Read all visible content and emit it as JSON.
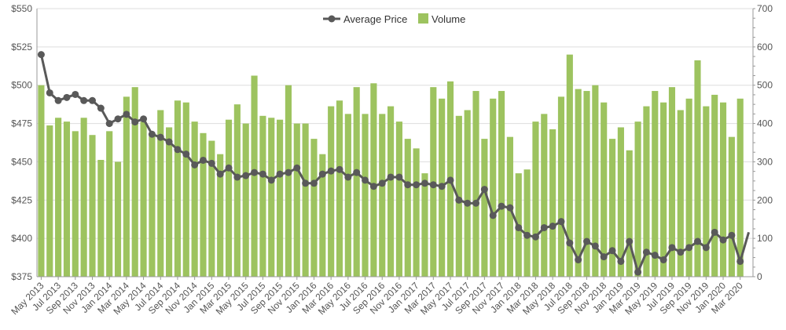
{
  "chart_data": {
    "type": "bar+line",
    "legend_position": "top-center",
    "grid": true,
    "colors": {
      "volume": "#9dc35f",
      "price": "#595959",
      "grid": "#dddddd",
      "axis": "#999999"
    },
    "y_left": {
      "label": "",
      "ylim": [
        375,
        550
      ],
      "ticks": [
        375,
        400,
        425,
        450,
        475,
        500,
        525,
        550
      ],
      "prefix": "$"
    },
    "y_right": {
      "label": "",
      "ylim": [
        0,
        700
      ],
      "ticks": [
        0,
        100,
        200,
        300,
        400,
        500,
        600,
        700
      ]
    },
    "x_tick_labels": [
      "May 2013",
      "Jul 2013",
      "Sep 2013",
      "Nov 2013",
      "Jan 2014",
      "Mar 2014",
      "May 2014",
      "Jul 2014",
      "Sep 2014",
      "Nov 2014",
      "Jan 2015",
      "Mar 2015",
      "May 2015",
      "Jul 2015",
      "Sep 2015",
      "Nov 2015",
      "Jan 2016",
      "Mar 2016",
      "May 2016",
      "Jul 2016",
      "Sep 2016",
      "Nov 2016",
      "Jan 2017",
      "Mar 2017",
      "May 2017",
      "Jul 2017",
      "Sep 2017",
      "Nov 2017",
      "Jan 2018",
      "Mar 2018",
      "May 2018",
      "Jul 2018",
      "Sep 2018",
      "Nov 2018",
      "Jan 2019",
      "Mar 2019",
      "May 2019",
      "Jul 2019",
      "Sep 2019",
      "Nov 2019",
      "Jan 2020",
      "Mar 2020"
    ],
    "x": [
      "May 2013",
      "Jun 2013",
      "Jul 2013",
      "Aug 2013",
      "Sep 2013",
      "Oct 2013",
      "Nov 2013",
      "Dec 2013",
      "Jan 2014",
      "Feb 2014",
      "Mar 2014",
      "Apr 2014",
      "May 2014",
      "Jun 2014",
      "Jul 2014",
      "Aug 2014",
      "Sep 2014",
      "Oct 2014",
      "Nov 2014",
      "Dec 2014",
      "Jan 2015",
      "Feb 2015",
      "Mar 2015",
      "Apr 2015",
      "May 2015",
      "Jun 2015",
      "Jul 2015",
      "Aug 2015",
      "Sep 2015",
      "Oct 2015",
      "Nov 2015",
      "Dec 2015",
      "Jan 2016",
      "Feb 2016",
      "Mar 2016",
      "Apr 2016",
      "May 2016",
      "Jun 2016",
      "Jul 2016",
      "Aug 2016",
      "Sep 2016",
      "Oct 2016",
      "Nov 2016",
      "Dec 2016",
      "Jan 2017",
      "Feb 2017",
      "Mar 2017",
      "Apr 2017",
      "May 2017",
      "Jun 2017",
      "Jul 2017",
      "Aug 2017",
      "Sep 2017",
      "Oct 2017",
      "Nov 2017",
      "Dec 2017",
      "Jan 2018",
      "Feb 2018",
      "Mar 2018",
      "Apr 2018",
      "May 2018",
      "Jun 2018",
      "Jul 2018",
      "Aug 2018",
      "Sep 2018",
      "Oct 2018",
      "Nov 2018",
      "Dec 2018",
      "Jan 2019",
      "Feb 2019",
      "Mar 2019",
      "Apr 2019",
      "May 2019",
      "Jun 2019",
      "Jul 2019",
      "Aug 2019",
      "Sep 2019",
      "Oct 2019",
      "Nov 2019",
      "Dec 2019",
      "Jan 2020",
      "Feb 2020",
      "Mar 2020",
      "Apr 2020"
    ],
    "series": [
      {
        "name": "Volume",
        "type": "bar",
        "axis": "right",
        "values": [
          500,
          395,
          415,
          405,
          380,
          415,
          370,
          305,
          380,
          300,
          470,
          495,
          405,
          375,
          435,
          390,
          460,
          455,
          405,
          375,
          355,
          320,
          410,
          450,
          400,
          525,
          420,
          415,
          410,
          500,
          400,
          400,
          360,
          320,
          445,
          460,
          425,
          495,
          425,
          505,
          425,
          445,
          405,
          360,
          335,
          270,
          495,
          465,
          510,
          420,
          435,
          485,
          360,
          465,
          485,
          365,
          270,
          280,
          405,
          425,
          385,
          470,
          580,
          490,
          485,
          500,
          455,
          360,
          390,
          330,
          405,
          445,
          485,
          455,
          495,
          435,
          465,
          565,
          445,
          475,
          455,
          365,
          465,
          0
        ]
      },
      {
        "name": "Average Price",
        "type": "line",
        "axis": "left",
        "values": [
          520,
          495,
          490,
          492,
          494,
          490,
          490,
          485,
          475,
          478,
          481,
          476,
          478,
          468,
          466,
          463,
          458,
          455,
          448,
          451,
          449,
          442,
          446,
          440,
          441,
          443,
          442,
          438,
          442,
          443,
          446,
          436,
          436,
          442,
          444,
          445,
          440,
          443,
          438,
          434,
          436,
          440,
          440,
          435,
          435,
          436,
          435,
          434,
          438,
          425,
          423,
          423,
          432,
          415,
          421,
          420,
          407,
          402,
          401,
          407,
          408,
          411,
          397,
          386,
          398,
          395,
          388,
          392,
          385,
          398,
          378,
          391,
          389,
          386,
          394,
          391,
          394,
          398,
          394,
          404,
          399,
          402,
          385,
          404
        ]
      }
    ]
  }
}
